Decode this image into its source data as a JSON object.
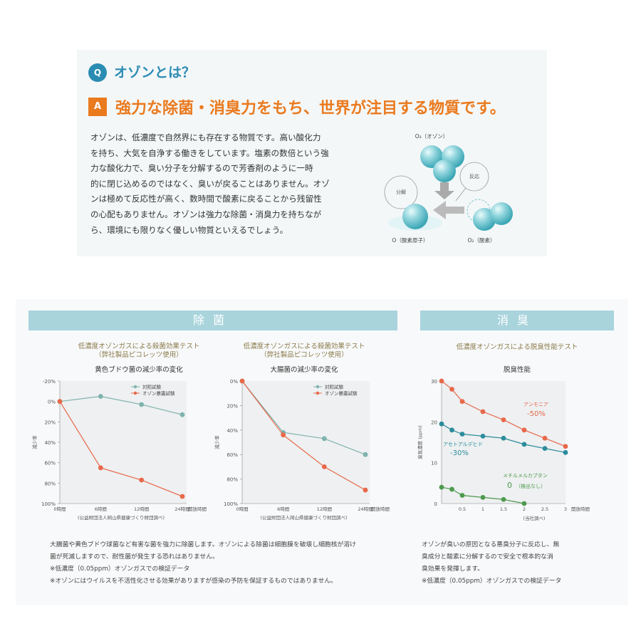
{
  "qa": {
    "q_badge": "Q",
    "question": "オゾンとは？",
    "a_badge": "A",
    "answer": "強力な除菌・消臭力をもち、世界が注目する物質です。",
    "intro_lines": [
      "オゾンは、低濃度で自然界にも存在する物質です。高い酸化力",
      "を持ち、大気を自浄する働きをしています。塩素の数倍という強",
      "力な酸化力で、臭い分子を分解するので芳香剤のように一時",
      "的に閉じ込めるのではなく、臭いが戻ることはありません。オゾ",
      "ンは極めて反応性が高く、数時間で酸素に戻ることから残留性",
      "の心配もありません。オゾンは強力な除菌・消臭力を持ちなが",
      "ら、環境にも限りなく優しい物質といえるでしょう。"
    ],
    "diagram": {
      "o3_label": "O₃（オゾン）",
      "o_label": "O（酸素原子）",
      "o2_label": "O₂（酸素）",
      "decompose": "分解",
      "react": "反応"
    }
  },
  "sections": {
    "jokin": "除菌",
    "shoshu": "消臭"
  },
  "chart_data": [
    {
      "type": "line",
      "title": "低濃度オゾンガスによる殺菌効果テスト（弊社製品ピコレッツ使用）",
      "title_lines": [
        "低濃度オゾンガスによる殺菌効果テスト",
        "（弊社製品ピコレッツ使用）"
      ],
      "subtitle": "黄色ブドウ菌の減少率の変化",
      "ylabel": "減少率",
      "xlabel": "開放時間",
      "categories": [
        "0時間",
        "6時間",
        "12時間",
        "24時間"
      ],
      "y_ticks": [
        "-20%",
        "0%",
        "20%",
        "40%",
        "60%",
        "80%",
        "100%"
      ],
      "ylim": [
        -20,
        100
      ],
      "y_inverted": true,
      "series": [
        {
          "name": "対照試験",
          "color": "#7fb3ad",
          "values": [
            0,
            -5,
            3,
            13
          ]
        },
        {
          "name": "オゾン暴露試験",
          "color": "#e8684a",
          "values": [
            0,
            65,
            77,
            93
          ]
        }
      ],
      "source": "(公益財団法人岡山県健康づくり財団調べ)"
    },
    {
      "type": "line",
      "title": "低濃度オゾンガスによる殺菌効果テスト（弊社製品ピコレッツ使用）",
      "title_lines": [
        "低濃度オゾンガスによる殺菌効果テスト",
        "（弊社製品ピコレッツ使用）"
      ],
      "subtitle": "大腸菌の減少率の変化",
      "ylabel": "減少率",
      "xlabel": "開放時間",
      "categories": [
        "0時間",
        "6時間",
        "12時間",
        "24時間"
      ],
      "y_ticks": [
        "0%",
        "20%",
        "40%",
        "60%",
        "80%",
        "100%"
      ],
      "ylim": [
        0,
        100
      ],
      "y_inverted": true,
      "series": [
        {
          "name": "対照試験",
          "color": "#7fb3ad",
          "values": [
            0,
            42,
            47,
            60
          ]
        },
        {
          "name": "オゾン暴露試験",
          "color": "#e8684a",
          "values": [
            0,
            44,
            70,
            89
          ]
        }
      ],
      "source": "(公益財団法人岡山県健康づくり財団調べ)"
    },
    {
      "type": "line",
      "title": "低濃度オゾンガスによる脱臭性能テスト",
      "subtitle": "脱臭性能",
      "ylabel": "臭気濃度 (ppm)",
      "xlabel": "開放時間",
      "x_ticks": [
        "0.5",
        "1",
        "1.5",
        "2",
        "2.5",
        "3"
      ],
      "y_ticks": [
        "0",
        "10",
        "20",
        "30"
      ],
      "xlim": [
        0,
        3
      ],
      "ylim": [
        0,
        30
      ],
      "series": [
        {
          "name": "アンモニア",
          "result": "-50%",
          "color": "#e8684a",
          "x": [
            0,
            0.25,
            0.5,
            1,
            1.5,
            2,
            2.5,
            3
          ],
          "y": [
            30,
            28,
            25,
            22.5,
            20.5,
            18,
            16,
            14
          ]
        },
        {
          "name": "アセトアルデヒド",
          "result": "-30%",
          "color": "#2b8c9c",
          "x": [
            0,
            0.25,
            0.5,
            1,
            1.5,
            2,
            2.5,
            3
          ],
          "y": [
            19.5,
            18,
            17,
            16.5,
            16,
            14.5,
            13.5,
            12.5
          ]
        },
        {
          "name": "メチルメルカプタン",
          "result": "0",
          "result_note": "（検出なし）",
          "color": "#4e9a4e",
          "x": [
            0,
            0.25,
            0.5,
            1,
            1.5,
            2
          ],
          "y": [
            4,
            3.5,
            2,
            1.5,
            1,
            0
          ]
        }
      ],
      "source": "(当社調べ)"
    }
  ],
  "notes": {
    "jokin_lines": [
      "大腸菌や黄色ブドウ球菌など有害な菌を強力に除菌します。オゾンによる除菌は細胞膜を破壊し細胞核が溶け",
      "菌が死滅しますので、耐性菌が発生する恐れはありません。",
      "※低濃度（0.05ppm）オゾンガスでの検証データ",
      "※オゾンにはウイルスを不活性化させる効果がありますが感染の予防を保証するものではありません。"
    ],
    "shoshu_lines": [
      "オゾンが臭いの原因となる悪臭分子に反応し、無",
      "臭成分と酸素に分解するので安全で根本的な消",
      "臭効果を発揮します。",
      "※低濃度（0.05ppm）オゾンガスでの検証データ"
    ]
  },
  "colors": {
    "blue": "#2b8cb3",
    "orange": "#ea7a1e",
    "band": "#a9d4dc",
    "control": "#7fb3ad",
    "ozone": "#e8684a",
    "ammonia": "#e8684a",
    "acetaldehyde": "#2b8c9c",
    "methyl": "#4e9a4e"
  }
}
